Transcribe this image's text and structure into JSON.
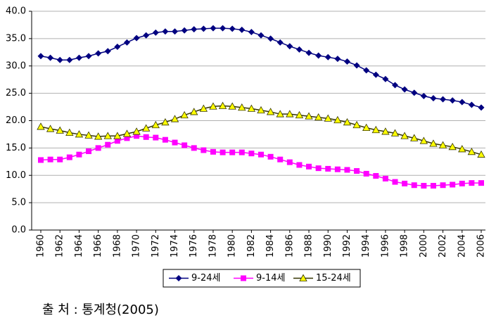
{
  "chart_data": {
    "type": "line",
    "x": [
      1960,
      1961,
      1962,
      1963,
      1964,
      1965,
      1966,
      1967,
      1968,
      1969,
      1970,
      1971,
      1972,
      1973,
      1974,
      1975,
      1976,
      1977,
      1978,
      1979,
      1980,
      1981,
      1982,
      1983,
      1984,
      1985,
      1986,
      1987,
      1988,
      1989,
      1990,
      1991,
      1992,
      1993,
      1994,
      1995,
      1996,
      1997,
      1998,
      1999,
      2000,
      2001,
      2002,
      2003,
      2004,
      2005,
      2006
    ],
    "series": [
      {
        "name": "9-24세",
        "color": "#000080",
        "marker": "diamond",
        "marker_color": "#000080",
        "values": [
          31.8,
          31.5,
          31.1,
          31.1,
          31.5,
          31.8,
          32.3,
          32.7,
          33.5,
          34.3,
          35.1,
          35.6,
          36.1,
          36.3,
          36.3,
          36.5,
          36.7,
          36.8,
          36.9,
          36.9,
          36.8,
          36.6,
          36.2,
          35.6,
          35.0,
          34.3,
          33.6,
          33.0,
          32.4,
          31.9,
          31.6,
          31.3,
          30.8,
          30.1,
          29.2,
          28.4,
          27.6,
          26.5,
          25.7,
          25.1,
          24.5,
          24.1,
          23.9,
          23.7,
          23.4,
          22.9,
          22.4
        ]
      },
      {
        "name": "9-14세",
        "color": "#ff00ff",
        "marker": "square",
        "marker_color": "#ff00ff",
        "values": [
          12.8,
          12.9,
          12.9,
          13.3,
          13.8,
          14.4,
          15.0,
          15.6,
          16.3,
          16.8,
          17.2,
          17.0,
          16.9,
          16.5,
          16.0,
          15.5,
          15.0,
          14.6,
          14.3,
          14.2,
          14.2,
          14.2,
          14.0,
          13.8,
          13.4,
          12.9,
          12.4,
          11.9,
          11.6,
          11.3,
          11.2,
          11.1,
          11.0,
          10.8,
          10.3,
          9.9,
          9.4,
          8.8,
          8.5,
          8.2,
          8.1,
          8.1,
          8.2,
          8.3,
          8.5,
          8.6,
          8.6
        ]
      },
      {
        "name": "15-24세",
        "color": "#333300",
        "marker": "triangle",
        "marker_color": "#ffff00",
        "values": [
          18.9,
          18.5,
          18.2,
          17.8,
          17.5,
          17.3,
          17.1,
          17.2,
          17.2,
          17.6,
          18.0,
          18.6,
          19.2,
          19.7,
          20.3,
          21.0,
          21.6,
          22.2,
          22.6,
          22.7,
          22.6,
          22.4,
          22.2,
          21.9,
          21.6,
          21.2,
          21.2,
          21.0,
          20.8,
          20.6,
          20.4,
          20.1,
          19.7,
          19.2,
          18.7,
          18.3,
          18.0,
          17.7,
          17.2,
          16.8,
          16.3,
          15.8,
          15.5,
          15.2,
          14.8,
          14.3,
          13.8
        ]
      }
    ],
    "xlim": [
      1960,
      2006
    ],
    "xticks": [
      1960,
      1962,
      1964,
      1966,
      1968,
      1970,
      1972,
      1974,
      1976,
      1978,
      1980,
      1982,
      1984,
      1986,
      1988,
      1990,
      1992,
      1994,
      1996,
      1998,
      2000,
      2002,
      2004,
      2006
    ],
    "ylim": [
      0,
      40
    ],
    "yticks": [
      {
        "value": 0,
        "label": "0.0"
      },
      {
        "value": 5,
        "label": "5.0"
      },
      {
        "value": 10,
        "label": "10.0"
      },
      {
        "value": 15,
        "label": "15.0"
      },
      {
        "value": 20,
        "label": "20.0"
      },
      {
        "value": 25,
        "label": "25.0"
      },
      {
        "value": 30,
        "label": "30.0"
      },
      {
        "value": 35,
        "label": "35.0"
      },
      {
        "value": 40,
        "label": "40.0"
      }
    ],
    "grid": true,
    "legend": "bottom",
    "source": "출 처 : 통계청(2005)"
  }
}
